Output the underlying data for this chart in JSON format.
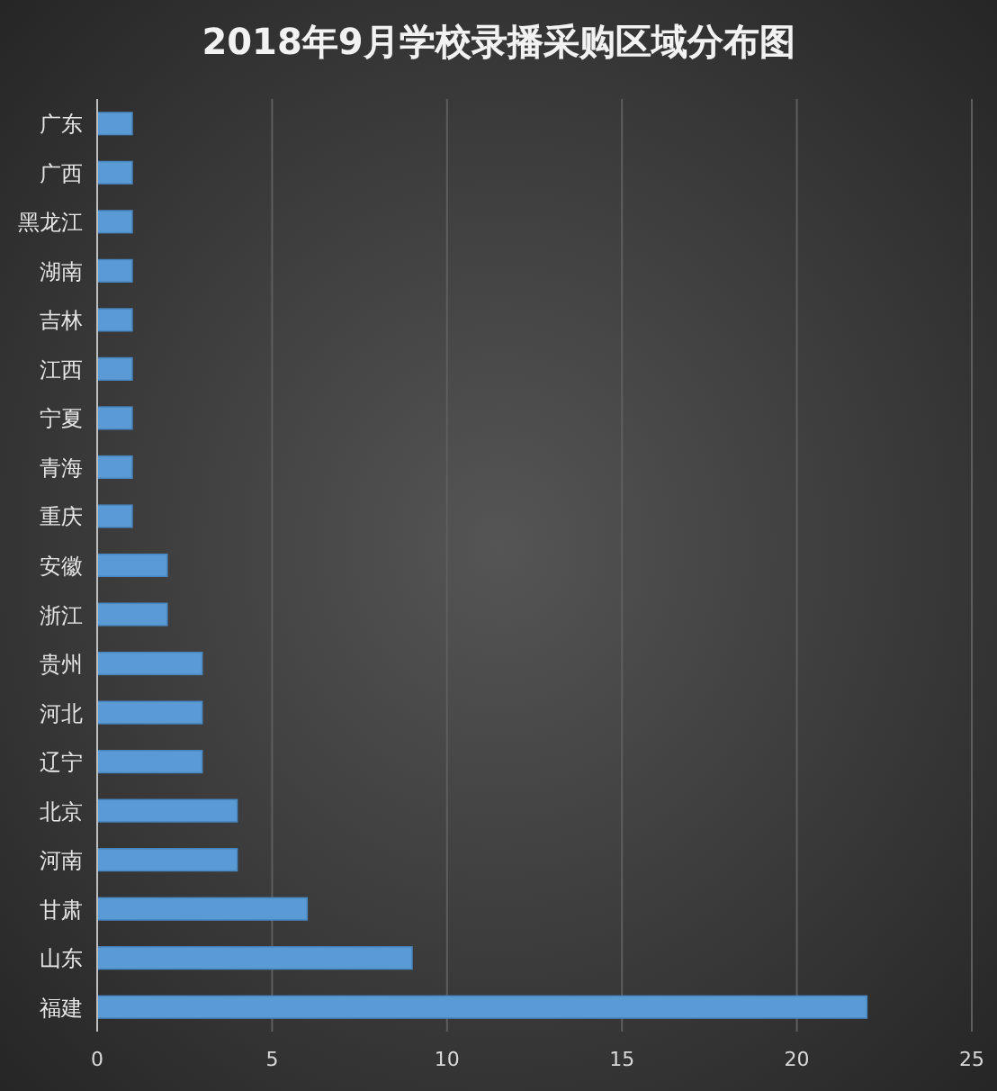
{
  "chart_data": {
    "type": "bar",
    "orientation": "horizontal",
    "title": "2018年9月学校录播采购区域分布图",
    "categories": [
      "广东",
      "广西",
      "黑龙江",
      "湖南",
      "吉林",
      "江西",
      "宁夏",
      "青海",
      "重庆",
      "安徽",
      "浙江",
      "贵州",
      "河北",
      "辽宁",
      "北京",
      "河南",
      "甘肃",
      "山东",
      "福建"
    ],
    "values": [
      1,
      1,
      1,
      1,
      1,
      1,
      1,
      1,
      1,
      2,
      2,
      3,
      3,
      3,
      4,
      4,
      6,
      9,
      22
    ],
    "color": "#5b9bd5",
    "xlim": [
      0,
      25
    ],
    "xticks": [
      0,
      5,
      10,
      15,
      20,
      25
    ],
    "grid": "x"
  }
}
